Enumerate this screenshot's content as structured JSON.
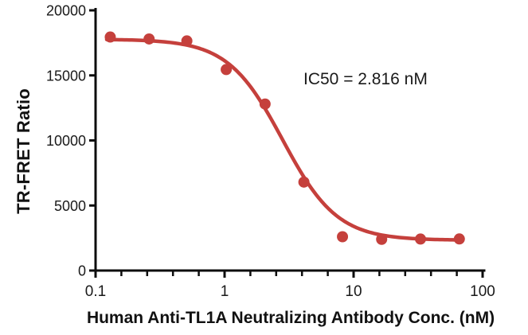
{
  "figure": {
    "background": "#ffffff"
  },
  "chart_data": {
    "type": "scatter",
    "title": "",
    "xlabel": "Human Anti-TL1A Neutralizing Antibody Conc. (nM)",
    "ylabel": "TR-FRET Ratio",
    "annotation": "IC50 = 2.816 nM",
    "x_scale": "log",
    "xlim": [
      0.1,
      100
    ],
    "ylim": [
      0,
      20000
    ],
    "x_ticks": [
      0.1,
      1,
      10,
      100
    ],
    "x_tick_labels": [
      "0.1",
      "1",
      "10",
      "100"
    ],
    "minor_ticks_per_decade": 4,
    "y_ticks": [
      0,
      5000,
      10000,
      15000,
      20000
    ],
    "y_tick_labels": [
      "0",
      "5000",
      "10000",
      "15000",
      "20000"
    ],
    "grid": false,
    "legend": "none",
    "series": [
      {
        "name": "Human Anti-TL1A Neutralizing Antibody",
        "color": "#C5403C",
        "marker": "circle",
        "points": [
          {
            "x": 0.13,
            "y": 17950
          },
          {
            "x": 0.26,
            "y": 17800
          },
          {
            "x": 0.51,
            "y": 17650
          },
          {
            "x": 1.03,
            "y": 15450
          },
          {
            "x": 2.06,
            "y": 12800
          },
          {
            "x": 4.12,
            "y": 6800
          },
          {
            "x": 8.2,
            "y": 2600
          },
          {
            "x": 16.5,
            "y": 2400
          },
          {
            "x": 33,
            "y": 2420
          },
          {
            "x": 66,
            "y": 2430
          }
        ]
      }
    ],
    "fit_curve": {
      "model": "4PL",
      "top": 17780,
      "bottom": 2330,
      "ic50": 2.816,
      "hill": 2.05,
      "x_start": 0.122,
      "x_end": 67
    },
    "colors": {
      "axis": "#0d0d0d",
      "tick_text": "#1a1a1a",
      "curve": "#C5403C",
      "marker": "#C5403C"
    }
  }
}
